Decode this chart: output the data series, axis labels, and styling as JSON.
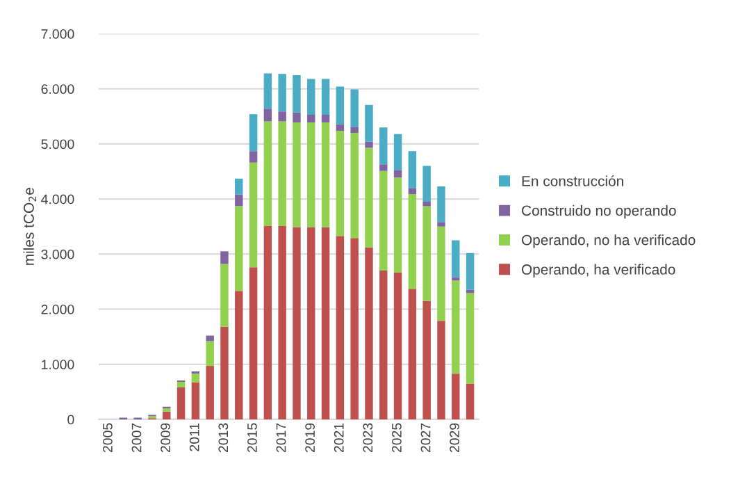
{
  "chart_data": {
    "type": "bar",
    "stacked": true,
    "ylabel": "miles tCO$_{2}$e",
    "categories": [
      "2005",
      null,
      "2007",
      null,
      "2009",
      null,
      "2011",
      null,
      "2013",
      null,
      "2015",
      null,
      "2017",
      null,
      "2019",
      null,
      "2021",
      null,
      "2023",
      null,
      "2025",
      null,
      "2027",
      null,
      "2029",
      null
    ],
    "series": [
      {
        "name": "Operando, ha verificado",
        "color": "#c0504d",
        "values": [
          0,
          0,
          0,
          20,
          140,
          580,
          670,
          970,
          1680,
          2330,
          2760,
          3510,
          3510,
          3490,
          3490,
          3490,
          3330,
          3290,
          3120,
          2700,
          2670,
          2370,
          2150,
          1790,
          830,
          650
        ]
      },
      {
        "name": "Operando, no ha verificado",
        "color": "#92d050",
        "values": [
          0,
          0,
          0,
          40,
          60,
          100,
          160,
          450,
          1140,
          1540,
          1900,
          1900,
          1900,
          1900,
          1900,
          1900,
          1910,
          1910,
          1810,
          1810,
          1720,
          1720,
          1720,
          1710,
          1690,
          1640
        ]
      },
      {
        "name": "Construido no operando",
        "color": "#8064a2",
        "values": [
          0,
          30,
          30,
          20,
          30,
          25,
          40,
          100,
          230,
          210,
          210,
          230,
          180,
          180,
          140,
          140,
          120,
          110,
          110,
          120,
          140,
          110,
          80,
          80,
          60,
          60
        ]
      },
      {
        "name": "En construcción",
        "color": "#4bacc6",
        "values": [
          0,
          0,
          0,
          0,
          0,
          0,
          0,
          0,
          0,
          290,
          670,
          640,
          680,
          680,
          650,
          650,
          680,
          680,
          670,
          670,
          650,
          670,
          650,
          650,
          670,
          670
        ]
      }
    ],
    "ylim": [
      0,
      7000
    ],
    "yticks": [
      {
        "value": 0,
        "label": "0"
      },
      {
        "value": 1000,
        "label": "1.000"
      },
      {
        "value": 2000,
        "label": "2.000"
      },
      {
        "value": 3000,
        "label": "3.000"
      },
      {
        "value": 4000,
        "label": "4.000"
      },
      {
        "value": 5000,
        "label": "5.000"
      },
      {
        "value": 6000,
        "label": "6.000"
      },
      {
        "value": 7000,
        "label": "7.000"
      }
    ],
    "grid": "y",
    "legend": "right"
  }
}
